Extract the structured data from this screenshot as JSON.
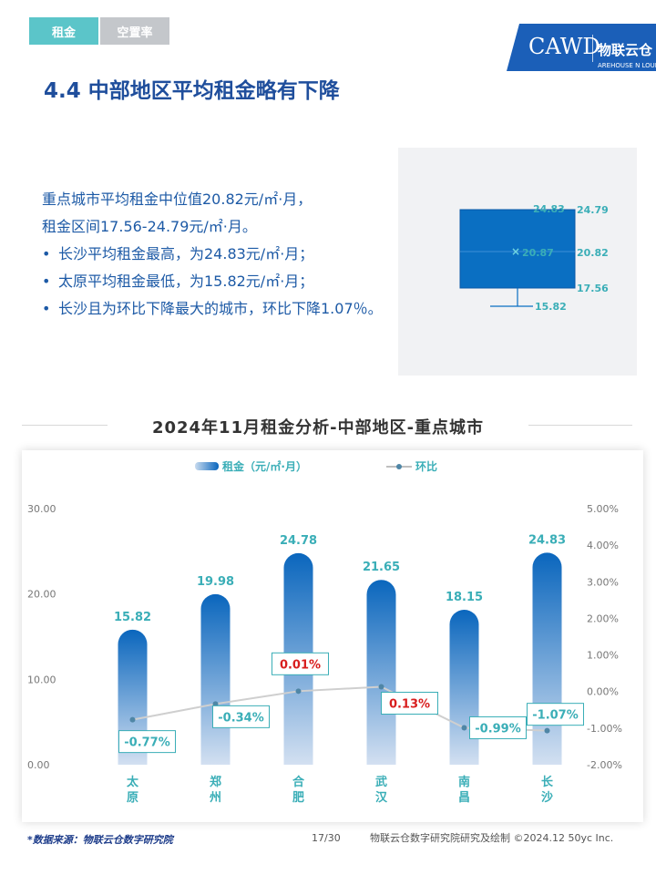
{
  "tabs": [
    {
      "label": "租金",
      "active": true
    },
    {
      "label": "空置率",
      "active": false
    }
  ],
  "logo": {
    "acronym": "CAWD",
    "brand": "物联云仓",
    "sub": "AREHOUSE  N  LOUD"
  },
  "page_title": "4.4 中部地区平均租金略有下降",
  "summary": {
    "line1": "重点城市平均租金中位值20.82元/㎡·月，",
    "line2": "租金区间17.56-24.79元/㎡·月。",
    "bullets": [
      "长沙平均租金最高，为24.83元/㎡·月；",
      "太原平均租金最低，为15.82元/㎡·月；",
      "长沙且为环比下降最大的城市，环比下降1.07％。"
    ]
  },
  "boxplot": {
    "max": "24.83",
    "q3": "24.79",
    "mean": "20.87",
    "median": "20.82",
    "q1": "17.56",
    "min": "15.82",
    "color": "#0a6fc2"
  },
  "section_title": "2024年11月租金分析-中部地区-重点城市",
  "chart_data": {
    "type": "bar",
    "categories": [
      "太原",
      "郑州",
      "合肥",
      "武汉",
      "南昌",
      "长沙"
    ],
    "series": [
      {
        "name": "租金（元/㎡·月）",
        "type": "bar",
        "axis": "left",
        "values": [
          15.82,
          19.98,
          24.78,
          21.65,
          18.15,
          24.83
        ],
        "labels": [
          "15.82",
          "19.98",
          "24.78",
          "21.65",
          "18.15",
          "24.83"
        ]
      },
      {
        "name": "环比",
        "type": "line",
        "axis": "right",
        "values": [
          -0.77,
          -0.34,
          0.01,
          0.13,
          -0.99,
          -1.07
        ],
        "labels": [
          "-0.77%",
          "-0.34%",
          "0.01%",
          "0.13%",
          "-0.99%",
          "-1.07%"
        ]
      }
    ],
    "y_left": {
      "min": 0,
      "max": 30,
      "ticks": [
        "0.00",
        "10.00",
        "20.00",
        "30.00"
      ]
    },
    "y_right": {
      "min": -2,
      "max": 5,
      "ticks": [
        "-2.00%",
        "-1.00%",
        "0.00%",
        "1.00%",
        "2.00%",
        "3.00%",
        "4.00%",
        "5.00%"
      ]
    },
    "legend_position": "top",
    "colors": {
      "bar_top": "#0a66bd",
      "bar_bottom": "#cfdcef",
      "line": "#cfcfcf",
      "point": "#4f86a6",
      "label_teal": "#3aaeb7",
      "label_red": "#d81e1e",
      "axis_text": "#777777"
    }
  },
  "footer": {
    "source": "*数据来源：物联云仓数字研究院",
    "page": "17/30",
    "credit": "物联云仓数字研究院研究及绘制   ©2024.12 50yc Inc."
  }
}
